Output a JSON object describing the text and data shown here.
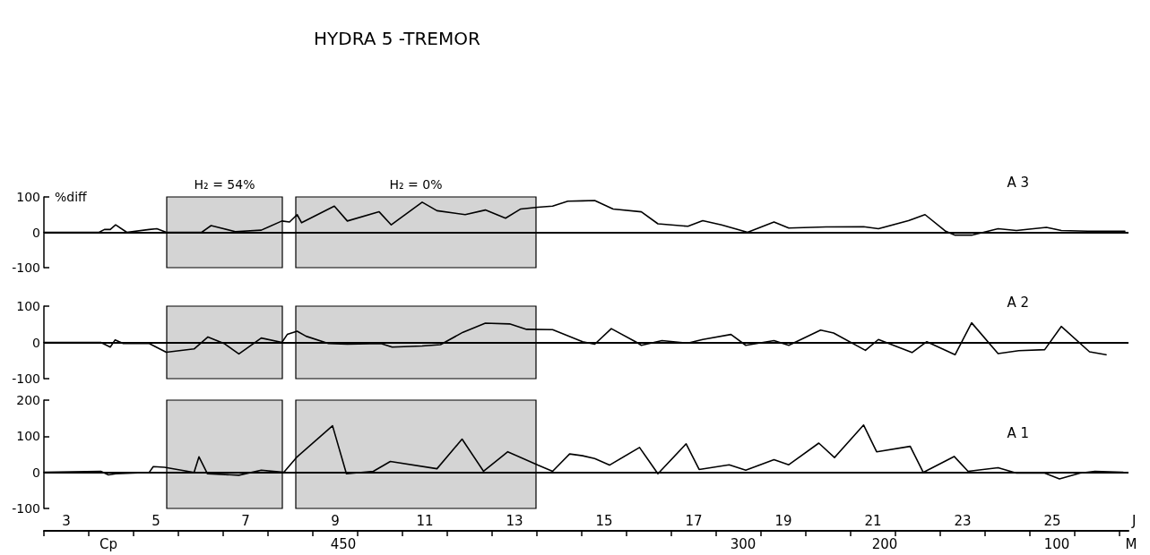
{
  "chart_data": [
    {
      "type": "line",
      "title": "HYDRA 5 -TREMOR",
      "ylabel": "%diff",
      "annotations": [
        "A 3"
      ],
      "tick_labels": "y",
      "grid": false,
      "marker": "none",
      "line_style": "solid",
      "xlim": [
        2.5,
        26.7
      ],
      "ylim": [
        -100,
        100
      ],
      "yticks": [
        100,
        0,
        -100
      ],
      "ref_lines": [
        {
          "axis": "y",
          "value": 0
        }
      ],
      "bands": [
        {
          "axis": "x",
          "from": 5.24,
          "to": 7.82,
          "label": "H₂ = 54%",
          "color": "#d4d4d4"
        },
        {
          "axis": "x",
          "from": 8.12,
          "to": 13.48,
          "label": "H₂ = 0%",
          "color": "#d4d4d4"
        }
      ],
      "series": [
        {
          "color": "#000000",
          "x": [
            2.5,
            3.73,
            3.85,
            3.98,
            4.1,
            4.35,
            4.85,
            5.02,
            5.23,
            6.02,
            6.23,
            6.77,
            7.35,
            7.81,
            7.98,
            8.15,
            8.25,
            8.98,
            9.27,
            9.98,
            10.25,
            10.94,
            11.27,
            11.9,
            12.35,
            12.8,
            13.14,
            13.52,
            13.85,
            14.19,
            14.52,
            14.79,
            15.2,
            15.83,
            16.2,
            16.87,
            17.2,
            17.62,
            18.2,
            18.79,
            19.12,
            19.95,
            20.79,
            21.12,
            21.79,
            22.16,
            22.62,
            22.83,
            23.2,
            23.79,
            24.2,
            24.87,
            25.2,
            25.79,
            26.62
          ],
          "values": [
            0,
            0,
            8,
            8,
            21,
            0,
            8,
            10,
            0,
            0,
            19,
            2,
            6,
            32,
            29,
            50,
            27,
            74,
            32,
            58,
            21,
            85,
            61,
            50,
            63,
            40,
            66,
            71,
            74,
            88,
            89,
            90,
            66,
            58,
            24,
            17,
            33,
            21,
            0,
            29,
            12,
            15,
            16,
            10,
            33,
            50,
            3,
            -8,
            -8,
            10,
            5,
            14,
            5,
            3,
            3
          ]
        }
      ]
    },
    {
      "type": "line",
      "annotations": [
        "A 2"
      ],
      "tick_labels": "y",
      "grid": false,
      "marker": "none",
      "line_style": "solid",
      "xlim": [
        2.5,
        26.7
      ],
      "ylim": [
        -100,
        100
      ],
      "yticks": [
        100,
        0,
        -100
      ],
      "ref_lines": [
        {
          "axis": "y",
          "value": 0
        }
      ],
      "bands": [
        {
          "axis": "x",
          "from": 5.24,
          "to": 7.82,
          "color": "#d4d4d4"
        },
        {
          "axis": "x",
          "from": 8.12,
          "to": 13.48,
          "color": "#d4d4d4"
        }
      ],
      "series": [
        {
          "color": "#000000",
          "x": [
            2.5,
            3.77,
            3.98,
            4.09,
            4.27,
            4.85,
            5.23,
            5.85,
            6.16,
            6.52,
            6.85,
            7.35,
            7.81,
            7.93,
            8.15,
            8.35,
            8.85,
            9.27,
            10.02,
            10.27,
            10.94,
            11.35,
            11.85,
            12.35,
            12.89,
            13.27,
            13.85,
            14.52,
            14.79,
            15.16,
            15.7,
            15.83,
            16.29,
            16.87,
            17.2,
            17.83,
            18.16,
            18.79,
            19.12,
            19.83,
            20.12,
            20.83,
            21.12,
            21.87,
            22.2,
            22.83,
            23.2,
            23.79,
            24.25,
            24.83,
            25.2,
            25.83,
            26.2
          ],
          "values": [
            0,
            0,
            -13,
            7,
            -3,
            -3,
            -27,
            -18,
            15,
            -3,
            -32,
            12,
            0,
            22,
            31,
            17,
            -3,
            -5,
            -3,
            -13,
            -10,
            -6,
            28,
            53,
            51,
            36,
            35,
            2,
            -5,
            38,
            2,
            -8,
            5,
            -2,
            8,
            22,
            -8,
            5,
            -8,
            34,
            26,
            -22,
            8,
            -28,
            2,
            -34,
            54,
            -31,
            -23,
            -20,
            44,
            -26,
            -34
          ]
        }
      ]
    },
    {
      "type": "line",
      "annotations": [
        "A 1",
        "Cp",
        "450",
        "300",
        "200",
        "100",
        "M"
      ],
      "xlabel": "J",
      "grid": false,
      "marker": "none",
      "line_style": "solid",
      "xlim": [
        2.5,
        26.7
      ],
      "ylim": [
        -100,
        200
      ],
      "yticks": [
        200,
        100,
        0,
        -100
      ],
      "xticks": [
        3,
        5,
        7,
        9,
        11,
        13,
        15,
        17,
        19,
        21,
        23,
        25
      ],
      "ref_lines": [
        {
          "axis": "y",
          "value": 0
        }
      ],
      "bands": [
        {
          "axis": "x",
          "from": 5.24,
          "to": 7.82,
          "color": "#d4d4d4"
        },
        {
          "axis": "x",
          "from": 8.12,
          "to": 13.48,
          "color": "#d4d4d4"
        }
      ],
      "series": [
        {
          "color": "#000000",
          "x": [
            2.5,
            3.77,
            3.94,
            4.1,
            4.85,
            4.94,
            5.19,
            5.85,
            5.96,
            6.15,
            6.85,
            7.35,
            7.85,
            8.15,
            8.94,
            9.25,
            9.85,
            10.23,
            11.27,
            11.83,
            12.31,
            12.85,
            13.52,
            13.85,
            14.23,
            14.52,
            14.79,
            15.12,
            15.79,
            16.2,
            16.83,
            17.12,
            17.79,
            18.16,
            18.79,
            19.12,
            19.79,
            20.14,
            20.79,
            21.08,
            21.83,
            22.12,
            22.81,
            23.12,
            23.79,
            24.2,
            24.83,
            25.16,
            25.62,
            25.95,
            26.58
          ],
          "values": [
            0,
            3,
            -7,
            -4,
            0,
            16,
            14,
            0,
            43,
            -4,
            -8,
            6,
            0,
            43,
            129,
            -4,
            3,
            30,
            10,
            92,
            3,
            57,
            20,
            3,
            51,
            46,
            38,
            20,
            69,
            -4,
            79,
            8,
            21,
            6,
            35,
            21,
            81,
            41,
            131,
            57,
            72,
            0,
            44,
            3,
            13,
            -2,
            -2,
            -18,
            -2,
            3,
            0
          ]
        }
      ]
    }
  ]
}
